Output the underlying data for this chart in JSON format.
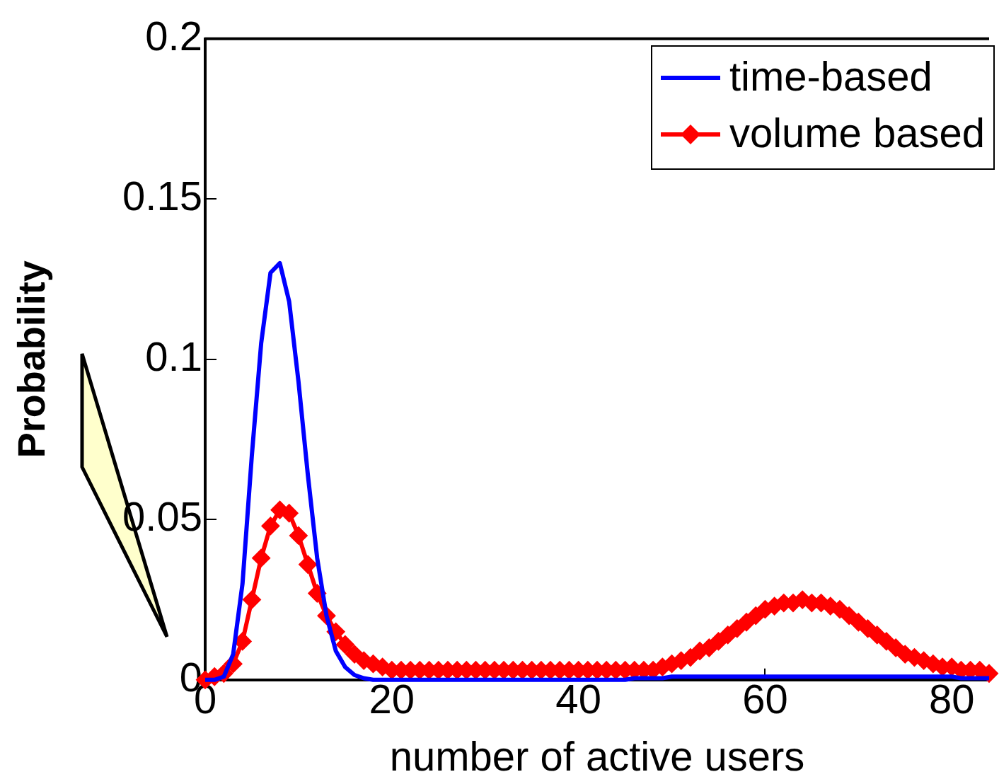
{
  "chart_data": {
    "type": "line",
    "xlabel": "number of active users",
    "ylabel": "Probability",
    "xlim": [
      0,
      84
    ],
    "xticks": [
      0,
      20,
      40,
      60,
      80
    ],
    "ylim": [
      0,
      0.2
    ],
    "yticks": [
      0,
      0.05,
      0.1,
      0.15,
      0.2
    ],
    "grid": false,
    "legend": "top right",
    "line_style": "solid",
    "x": [
      0,
      1,
      2,
      3,
      4,
      5,
      6,
      7,
      8,
      9,
      10,
      11,
      12,
      13,
      14,
      15,
      16,
      17,
      18,
      19,
      20,
      21,
      22,
      23,
      24,
      25,
      26,
      27,
      28,
      29,
      30,
      31,
      32,
      33,
      34,
      35,
      36,
      37,
      38,
      39,
      40,
      41,
      42,
      43,
      44,
      45,
      46,
      47,
      48,
      49,
      50,
      51,
      52,
      53,
      54,
      55,
      56,
      57,
      58,
      59,
      60,
      61,
      62,
      63,
      64,
      65,
      66,
      67,
      68,
      69,
      70,
      71,
      72,
      73,
      74,
      75,
      76,
      77,
      78,
      79,
      80,
      81,
      82,
      83,
      84
    ],
    "series": [
      {
        "name": "time-based",
        "color": "#0000ff",
        "marker": "none",
        "values": [
          0,
          0,
          0.001,
          0.008,
          0.03,
          0.07,
          0.105,
          0.127,
          0.13,
          0.118,
          0.093,
          0.064,
          0.038,
          0.02,
          0.009,
          0.004,
          0.0015,
          0.0005,
          0,
          0,
          0,
          0,
          0,
          0,
          0,
          0,
          0,
          0,
          0,
          0,
          0,
          0,
          0,
          0,
          0,
          0,
          0,
          0,
          0,
          0,
          0,
          0,
          0,
          0,
          0,
          0,
          0.0005,
          0.0005,
          0.0005,
          0.0005,
          0.001,
          0.001,
          0.001,
          0.001,
          0.001,
          0.001,
          0.001,
          0.001,
          0.001,
          0.001,
          0.001,
          0.001,
          0.001,
          0.001,
          0.001,
          0.001,
          0.001,
          0.001,
          0.001,
          0.001,
          0.001,
          0.001,
          0.001,
          0.001,
          0.001,
          0.001,
          0.001,
          0.001,
          0.001,
          0.001,
          0.001,
          0.0005,
          0.0005,
          0.0005,
          0.0005
        ]
      },
      {
        "name": "volume based",
        "color": "#ff0000",
        "marker": "diamond",
        "values": [
          0,
          0.001,
          0.002,
          0.005,
          0.012,
          0.025,
          0.038,
          0.048,
          0.053,
          0.052,
          0.045,
          0.036,
          0.027,
          0.02,
          0.015,
          0.011,
          0.008,
          0.006,
          0.005,
          0.004,
          0.003,
          0.003,
          0.003,
          0.003,
          0.003,
          0.003,
          0.003,
          0.003,
          0.003,
          0.003,
          0.003,
          0.003,
          0.003,
          0.003,
          0.003,
          0.003,
          0.003,
          0.003,
          0.003,
          0.003,
          0.003,
          0.003,
          0.003,
          0.003,
          0.003,
          0.003,
          0.003,
          0.003,
          0.003,
          0.004,
          0.005,
          0.006,
          0.007,
          0.009,
          0.01,
          0.012,
          0.014,
          0.016,
          0.018,
          0.02,
          0.022,
          0.023,
          0.024,
          0.024,
          0.025,
          0.024,
          0.024,
          0.023,
          0.022,
          0.02,
          0.018,
          0.016,
          0.014,
          0.012,
          0.01,
          0.008,
          0.007,
          0.006,
          0.005,
          0.004,
          0.004,
          0.003,
          0.003,
          0.003,
          0.002
        ]
      }
    ]
  }
}
